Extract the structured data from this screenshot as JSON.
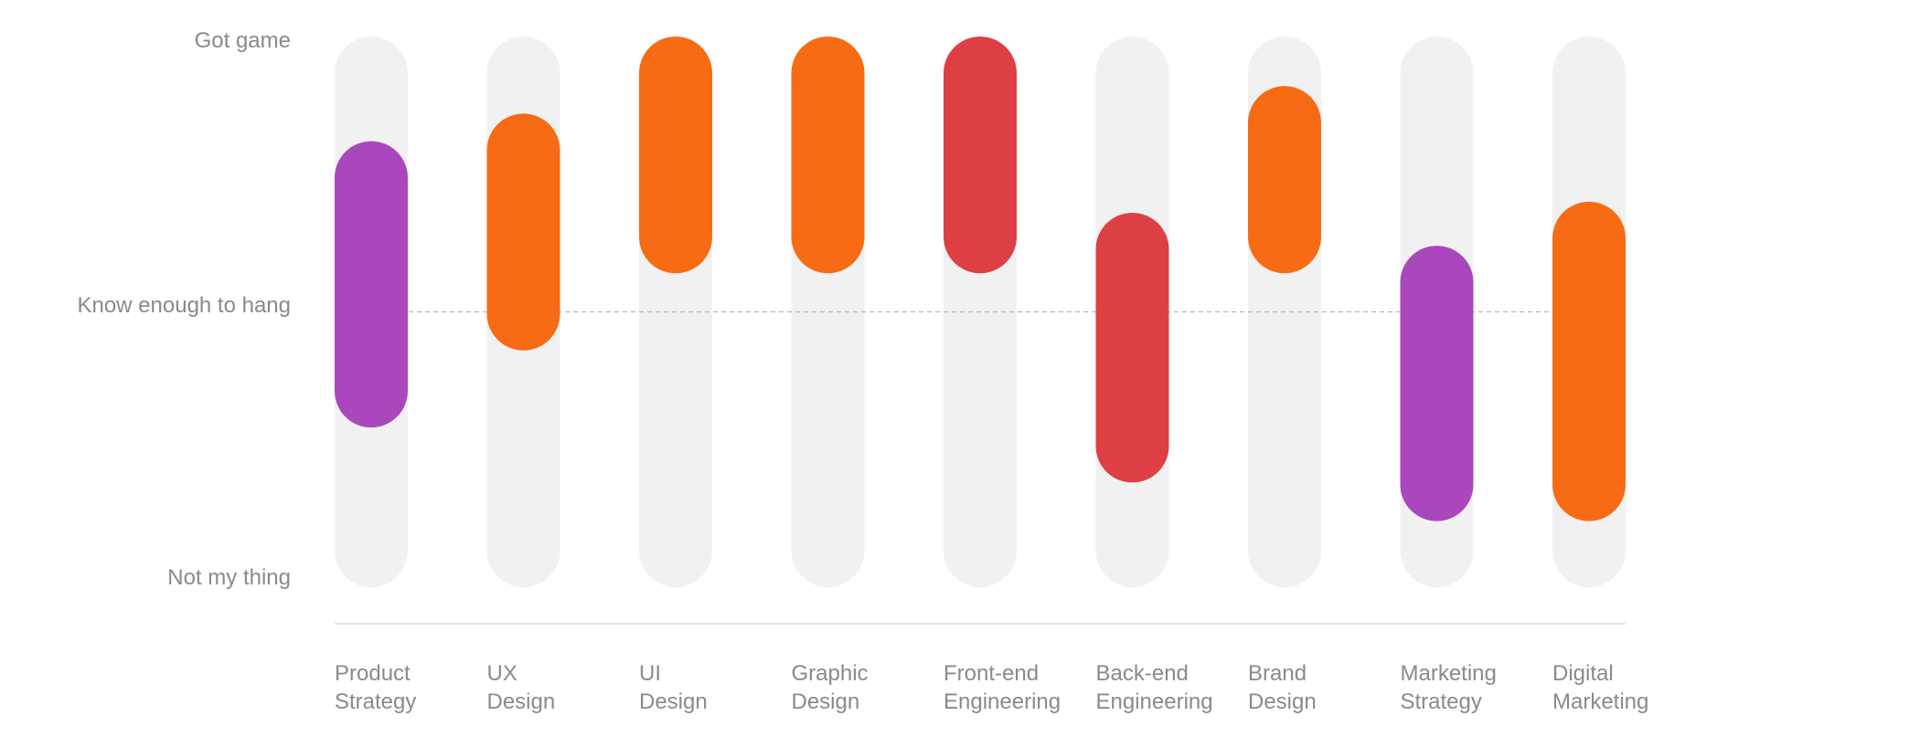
{
  "chart_data": {
    "type": "range-bar",
    "y_levels": [
      "Got game",
      "Know enough to hang",
      "Not my thing"
    ],
    "categories": [
      {
        "label_lines": [
          "Product",
          "Strategy"
        ],
        "low": 0.29,
        "high": 0.81,
        "color": "#ab47bc"
      },
      {
        "label_lines": [
          "UX",
          "Design"
        ],
        "low": 0.43,
        "high": 0.86,
        "color": "#f76b15"
      },
      {
        "label_lines": [
          "UI",
          "Design"
        ],
        "low": 0.57,
        "high": 1.0,
        "color": "#f76b15"
      },
      {
        "label_lines": [
          "Graphic",
          "Design"
        ],
        "low": 0.57,
        "high": 1.0,
        "color": "#f76b15"
      },
      {
        "label_lines": [
          "Front-end",
          "Engineering"
        ],
        "low": 0.57,
        "high": 1.0,
        "color": "#dd4044"
      },
      {
        "label_lines": [
          "Back-end",
          "Engineering"
        ],
        "low": 0.19,
        "high": 0.68,
        "color": "#dd4044"
      },
      {
        "label_lines": [
          "Brand",
          "Design"
        ],
        "low": 0.57,
        "high": 0.91,
        "color": "#f76b15"
      },
      {
        "label_lines": [
          "Marketing",
          "Strategy"
        ],
        "low": 0.12,
        "high": 0.62,
        "color": "#ab47bc"
      },
      {
        "label_lines": [
          "Digital",
          "Marketing"
        ],
        "low": 0.12,
        "high": 0.7,
        "color": "#f76b15"
      }
    ],
    "reference_line": 0.5,
    "track_color": "#f1f1f1",
    "axis_color": "#dddddd",
    "reference_line_color": "#b5b5b5",
    "text_color": "#8a8a8a"
  }
}
